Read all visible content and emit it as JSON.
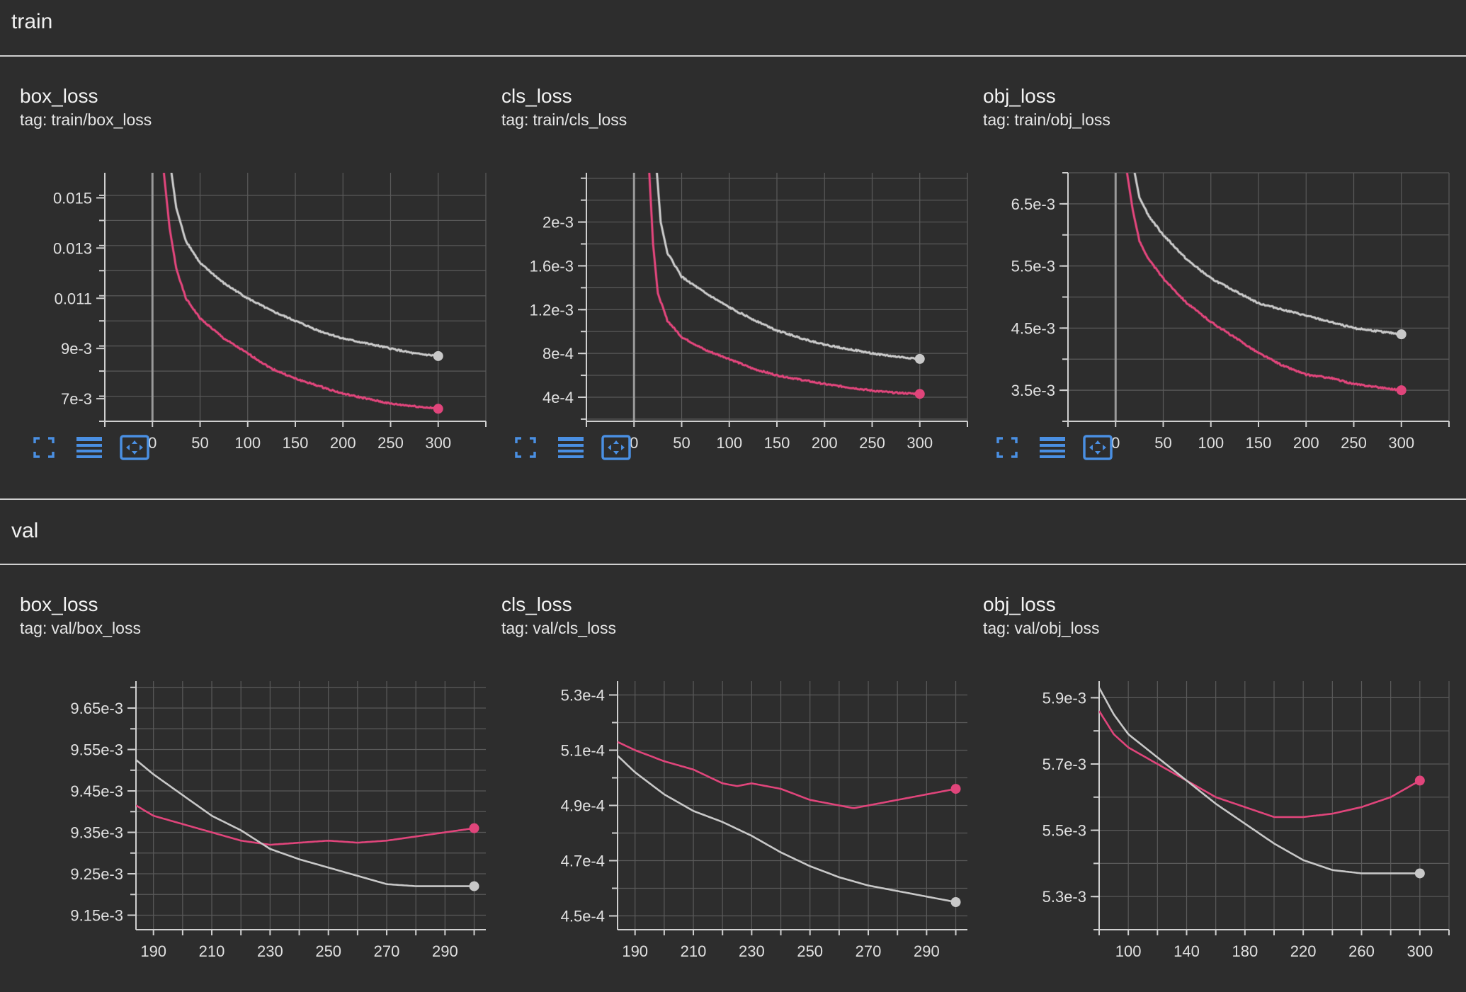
{
  "colors": {
    "series_a": "#e0457b",
    "series_b": "#c8c8c8",
    "accent": "#4a8fe2",
    "grid": "#5a5a5a",
    "axis": "#cfcfcf"
  },
  "sections": [
    {
      "title": "train"
    },
    {
      "title": "val"
    }
  ],
  "toolbar_icons": [
    "fullscreen-icon",
    "data-table-icon",
    "fit-domain-icon"
  ],
  "cards": [
    {
      "title": "box_loss",
      "tag_label": "tag:",
      "tag": "train/box_loss"
    },
    {
      "title": "cls_loss",
      "tag_label": "tag:",
      "tag": "train/cls_loss"
    },
    {
      "title": "obj_loss",
      "tag_label": "tag:",
      "tag": "train/obj_loss"
    },
    {
      "title": "box_loss",
      "tag_label": "tag:",
      "tag": "val/box_loss"
    },
    {
      "title": "cls_loss",
      "tag_label": "tag:",
      "tag": "val/cls_loss"
    },
    {
      "title": "obj_loss",
      "tag_label": "tag:",
      "tag": "val/obj_loss"
    }
  ],
  "chart_data": [
    {
      "type": "line",
      "title": "box_loss",
      "xlim": [
        -50,
        350
      ],
      "ylim": [
        0.0061,
        0.016
      ],
      "xticks": [
        0,
        50,
        100,
        150,
        200,
        250,
        300
      ],
      "yticks": [
        {
          "v": 0.015,
          "label": "0.015"
        },
        {
          "v": 0.013,
          "label": "0.013"
        },
        {
          "v": 0.011,
          "label": "0.011"
        },
        {
          "v": 0.009,
          "label": "9e-3"
        },
        {
          "v": 0.007,
          "label": "7e-3"
        }
      ],
      "ymin_major": 0.0061,
      "ymajor_step": 0.002,
      "yminor_step": 0.001,
      "xminor": 50,
      "zero_line": true,
      "noise": true,
      "series": [
        {
          "color": "pink",
          "x": [
            12,
            18,
            25,
            35,
            50,
            75,
            100,
            125,
            150,
            175,
            200,
            225,
            250,
            275,
            300
          ],
          "y": [
            0.016,
            0.0138,
            0.0122,
            0.011,
            0.0102,
            0.0094,
            0.0088,
            0.0082,
            0.0078,
            0.0075,
            0.0072,
            0.007,
            0.0068,
            0.0067,
            0.0066
          ]
        },
        {
          "color": "gray",
          "x": [
            20,
            25,
            35,
            50,
            75,
            100,
            125,
            150,
            175,
            200,
            225,
            250,
            275,
            300
          ],
          "y": [
            0.016,
            0.0146,
            0.0133,
            0.0124,
            0.0116,
            0.011,
            0.0105,
            0.0101,
            0.0097,
            0.0094,
            0.0092,
            0.009,
            0.0088,
            0.0087
          ]
        }
      ]
    },
    {
      "type": "line",
      "title": "cls_loss",
      "xlim": [
        -50,
        350
      ],
      "ylim": [
        0.00018,
        0.00245
      ],
      "xticks": [
        0,
        50,
        100,
        150,
        200,
        250,
        300
      ],
      "yticks": [
        {
          "v": 0.002,
          "label": "2e-3"
        },
        {
          "v": 0.0016,
          "label": "1.6e-3"
        },
        {
          "v": 0.0012,
          "label": "1.2e-3"
        },
        {
          "v": 0.0008,
          "label": "8e-4"
        },
        {
          "v": 0.0004,
          "label": "4e-4"
        }
      ],
      "ymin_major": 0.0002,
      "ymajor_step": 0.0004,
      "yminor_step": 0.0002,
      "xminor": 50,
      "zero_line": true,
      "noise": true,
      "series": [
        {
          "color": "pink",
          "x": [
            16,
            20,
            25,
            35,
            50,
            75,
            100,
            125,
            150,
            175,
            200,
            225,
            250,
            275,
            300
          ],
          "y": [
            0.00245,
            0.0018,
            0.00135,
            0.0011,
            0.00095,
            0.00083,
            0.00075,
            0.00066,
            0.0006,
            0.00056,
            0.00052,
            0.00049,
            0.00046,
            0.00044,
            0.00043
          ]
        },
        {
          "color": "gray",
          "x": [
            24,
            28,
            35,
            50,
            75,
            100,
            125,
            150,
            175,
            200,
            225,
            250,
            275,
            300
          ],
          "y": [
            0.00245,
            0.002,
            0.00172,
            0.0015,
            0.00135,
            0.00122,
            0.00111,
            0.00101,
            0.00094,
            0.00088,
            0.00084,
            0.0008,
            0.00077,
            0.00075
          ]
        }
      ]
    },
    {
      "type": "line",
      "title": "obj_loss",
      "xlim": [
        -50,
        350
      ],
      "ylim": [
        0.003,
        0.007
      ],
      "xticks": [
        0,
        50,
        100,
        150,
        200,
        250,
        300
      ],
      "yticks": [
        {
          "v": 0.0065,
          "label": "6.5e-3"
        },
        {
          "v": 0.0055,
          "label": "5.5e-3"
        },
        {
          "v": 0.0045,
          "label": "4.5e-3"
        },
        {
          "v": 0.0035,
          "label": "3.5e-3"
        }
      ],
      "ymin_major": 0.003,
      "ymajor_step": 0.001,
      "yminor_step": 0.0005,
      "xminor": 50,
      "zero_line": true,
      "noise": true,
      "series": [
        {
          "color": "pink",
          "x": [
            12,
            18,
            25,
            35,
            50,
            75,
            100,
            125,
            150,
            175,
            200,
            225,
            250,
            275,
            300
          ],
          "y": [
            0.007,
            0.0064,
            0.0059,
            0.0056,
            0.0053,
            0.0049,
            0.0046,
            0.00435,
            0.0041,
            0.0039,
            0.00375,
            0.0037,
            0.0036,
            0.00355,
            0.0035
          ]
        },
        {
          "color": "gray",
          "x": [
            20,
            25,
            35,
            50,
            75,
            100,
            125,
            150,
            175,
            200,
            225,
            250,
            275,
            300
          ],
          "y": [
            0.007,
            0.0066,
            0.0063,
            0.006,
            0.0056,
            0.0053,
            0.0051,
            0.0049,
            0.0048,
            0.0047,
            0.0046,
            0.0045,
            0.00445,
            0.0044
          ]
        }
      ]
    },
    {
      "type": "line",
      "title": "box_loss",
      "xlim": [
        184,
        304
      ],
      "ylim": [
        0.009115,
        0.009715
      ],
      "xticks": [
        190,
        210,
        230,
        250,
        270,
        290
      ],
      "yticks": [
        {
          "v": 0.00965,
          "label": "9.65e-3"
        },
        {
          "v": 0.00955,
          "label": "9.55e-3"
        },
        {
          "v": 0.00945,
          "label": "9.45e-3"
        },
        {
          "v": 0.00935,
          "label": "9.35e-3"
        },
        {
          "v": 0.00925,
          "label": "9.25e-3"
        },
        {
          "v": 0.00915,
          "label": "9.15e-3"
        }
      ],
      "ymin_major": 0.00915,
      "ymajor_step": 0.0001,
      "yminor_step": 5e-05,
      "xminor": 10,
      "zero_line": false,
      "noise": false,
      "series": [
        {
          "color": "pink",
          "x": [
            184,
            190,
            200,
            210,
            220,
            230,
            240,
            250,
            260,
            270,
            280,
            290,
            300
          ],
          "y": [
            0.009415,
            0.00939,
            0.00937,
            0.00935,
            0.00933,
            0.00932,
            0.009325,
            0.00933,
            0.009325,
            0.00933,
            0.00934,
            0.00935,
            0.00936
          ]
        },
        {
          "color": "gray",
          "x": [
            184,
            190,
            200,
            210,
            220,
            230,
            240,
            250,
            260,
            270,
            280,
            290,
            300
          ],
          "y": [
            0.009525,
            0.00949,
            0.00944,
            0.00939,
            0.009355,
            0.00931,
            0.009285,
            0.009265,
            0.009245,
            0.009225,
            0.00922,
            0.00922,
            0.00922
          ]
        }
      ]
    },
    {
      "type": "line",
      "title": "cls_loss",
      "xlim": [
        184,
        304
      ],
      "ylim": [
        0.000445,
        0.000535
      ],
      "xticks": [
        190,
        210,
        230,
        250,
        270,
        290
      ],
      "yticks": [
        {
          "v": 0.00053,
          "label": "5.3e-4"
        },
        {
          "v": 0.00051,
          "label": "5.1e-4"
        },
        {
          "v": 0.00049,
          "label": "4.9e-4"
        },
        {
          "v": 0.00047,
          "label": "4.7e-4"
        },
        {
          "v": 0.00045,
          "label": "4.5e-4"
        }
      ],
      "ymin_major": 0.00045,
      "ymajor_step": 2e-05,
      "yminor_step": 1e-05,
      "xminor": 10,
      "zero_line": false,
      "noise": false,
      "series": [
        {
          "color": "pink",
          "x": [
            184,
            190,
            200,
            210,
            220,
            225,
            230,
            240,
            250,
            260,
            265,
            270,
            280,
            290,
            300
          ],
          "y": [
            0.000513,
            0.00051,
            0.000506,
            0.000503,
            0.000498,
            0.000497,
            0.000498,
            0.000496,
            0.000492,
            0.00049,
            0.000489,
            0.00049,
            0.000492,
            0.000494,
            0.000496
          ]
        },
        {
          "color": "gray",
          "x": [
            184,
            190,
            200,
            210,
            220,
            230,
            240,
            250,
            260,
            270,
            280,
            290,
            300
          ],
          "y": [
            0.000508,
            0.000502,
            0.000494,
            0.000488,
            0.000484,
            0.000479,
            0.000473,
            0.000468,
            0.000464,
            0.000461,
            0.000459,
            0.000457,
            0.000455
          ]
        }
      ]
    },
    {
      "type": "line",
      "title": "obj_loss",
      "xlim": [
        80,
        320
      ],
      "ylim": [
        0.0052,
        0.00595
      ],
      "xticks": [
        100,
        140,
        180,
        220,
        260,
        300
      ],
      "yticks": [
        {
          "v": 0.0059,
          "label": "5.9e-3"
        },
        {
          "v": 0.0057,
          "label": "5.7e-3"
        },
        {
          "v": 0.0055,
          "label": "5.5e-3"
        },
        {
          "v": 0.0053,
          "label": "5.3e-3"
        }
      ],
      "ymin_major": 0.0052,
      "ymajor_step": 0.0002,
      "yminor_step": 0.0001,
      "xminor": 20,
      "zero_line": false,
      "noise": false,
      "series": [
        {
          "color": "pink",
          "x": [
            80,
            90,
            100,
            120,
            140,
            160,
            180,
            200,
            220,
            240,
            260,
            280,
            300
          ],
          "y": [
            0.00586,
            0.00579,
            0.00575,
            0.0057,
            0.00565,
            0.0056,
            0.00557,
            0.00554,
            0.00554,
            0.00555,
            0.00557,
            0.0056,
            0.00565
          ]
        },
        {
          "color": "gray",
          "x": [
            80,
            90,
            100,
            120,
            140,
            160,
            180,
            200,
            220,
            240,
            260,
            280,
            300
          ],
          "y": [
            0.00593,
            0.00585,
            0.00579,
            0.00572,
            0.00565,
            0.00558,
            0.00552,
            0.00546,
            0.00541,
            0.00538,
            0.00537,
            0.00537,
            0.00537
          ]
        }
      ]
    }
  ]
}
